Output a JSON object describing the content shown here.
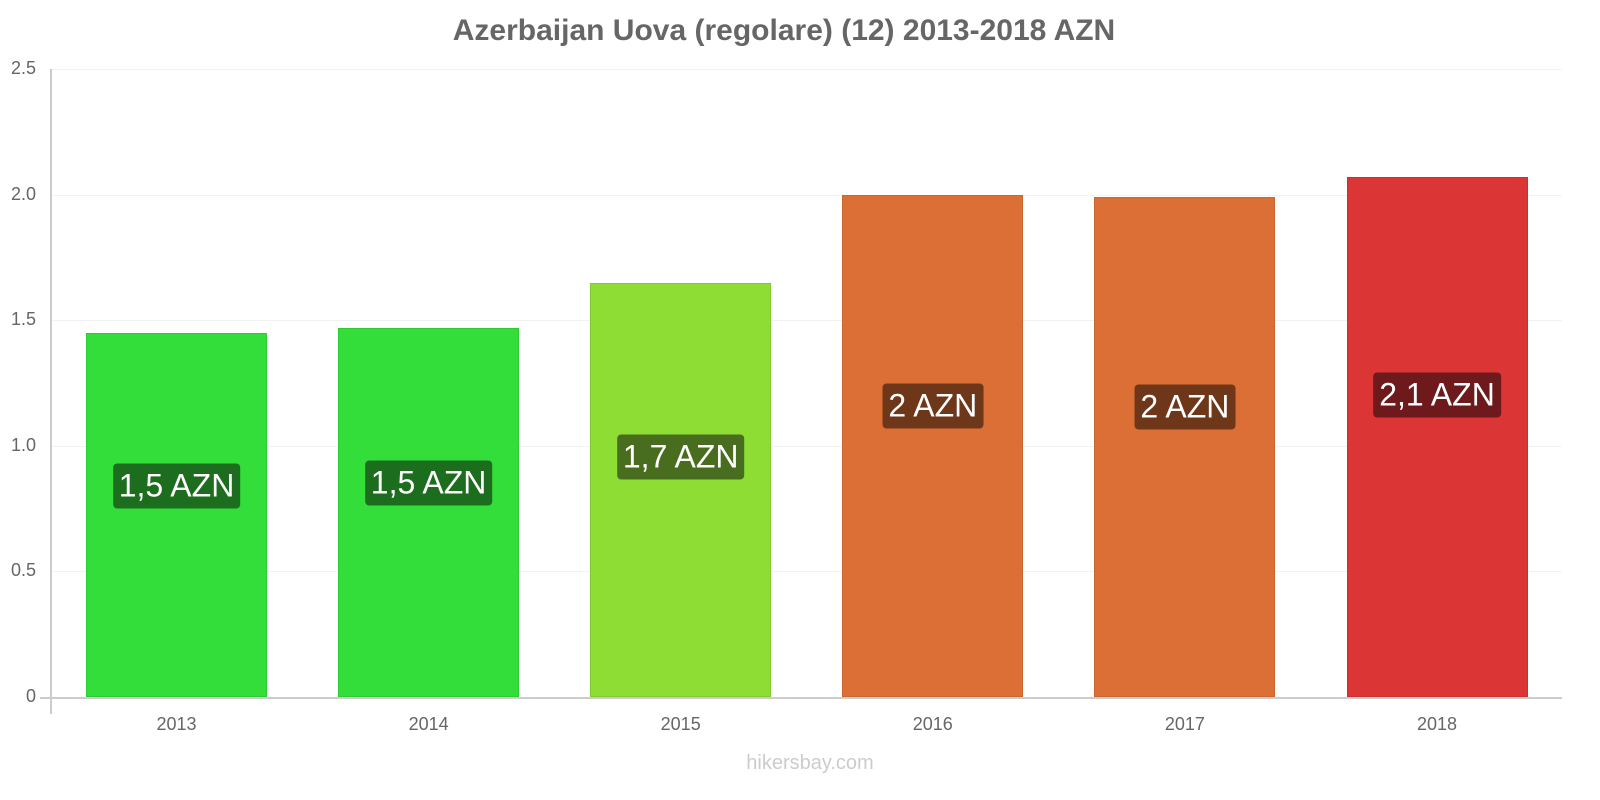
{
  "chart_data": {
    "type": "bar",
    "title": "Azerbaijan Uova (regolare) (12) 2013-2018 AZN",
    "xlabel": "",
    "ylabel": "",
    "categories": [
      "2013",
      "2014",
      "2015",
      "2016",
      "2017",
      "2018"
    ],
    "values": [
      1.45,
      1.47,
      1.65,
      2.0,
      1.99,
      2.07
    ],
    "data_labels": [
      "1,5 AZN",
      "1,5 AZN",
      "1,7 AZN",
      "2 AZN",
      "2 AZN",
      "2,1 AZN"
    ],
    "bar_colors": [
      "#33dd3a",
      "#33dd3a",
      "#8ddd35",
      "#dc6f35",
      "#dc6f35",
      "#db3535"
    ],
    "label_bg_colors": [
      "#1d6d1e",
      "#1d6d1e",
      "#496d1e",
      "#6e3719",
      "#6e3719",
      "#6e1a1d"
    ],
    "ylim": [
      0,
      2.5
    ],
    "yticks": [
      "0",
      "0.5",
      "1.0",
      "1.5",
      "2.0",
      "2.5"
    ],
    "grid": true,
    "legend": null
  },
  "footer": {
    "watermark": "hikersbay.com"
  }
}
